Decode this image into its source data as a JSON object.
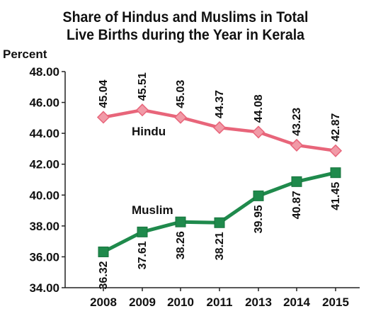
{
  "chart_data": {
    "type": "line",
    "title_line1": "Share of Hindus and Muslims in Total",
    "title_line2": "Live Births during the Year in Kerala",
    "ylabel": "Percent",
    "xlabel": "",
    "categories": [
      "2008",
      "2009",
      "2010",
      "2011",
      "2013",
      "2014",
      "2015"
    ],
    "ylim": [
      34,
      48
    ],
    "yticks": [
      "34.00",
      "36.00",
      "38.00",
      "40.00",
      "42.00",
      "44.00",
      "46.00",
      "48.00"
    ],
    "grid": false,
    "series": [
      {
        "name": "Hindu",
        "color": "#e8657a",
        "marker": "diamond",
        "values": [
          45.04,
          45.51,
          45.03,
          44.37,
          44.08,
          43.23,
          42.87
        ],
        "labels": [
          "45.04",
          "45.51",
          "45.03",
          "44.37",
          "44.08",
          "43.23",
          "42.87"
        ]
      },
      {
        "name": "Muslim",
        "color": "#1f8a4c",
        "marker": "square",
        "values": [
          36.32,
          37.61,
          38.26,
          38.21,
          39.95,
          40.87,
          41.45
        ],
        "labels": [
          "36.32",
          "37.61",
          "38.26",
          "38.21",
          "39.95",
          "40.87",
          "41.45"
        ]
      }
    ]
  }
}
